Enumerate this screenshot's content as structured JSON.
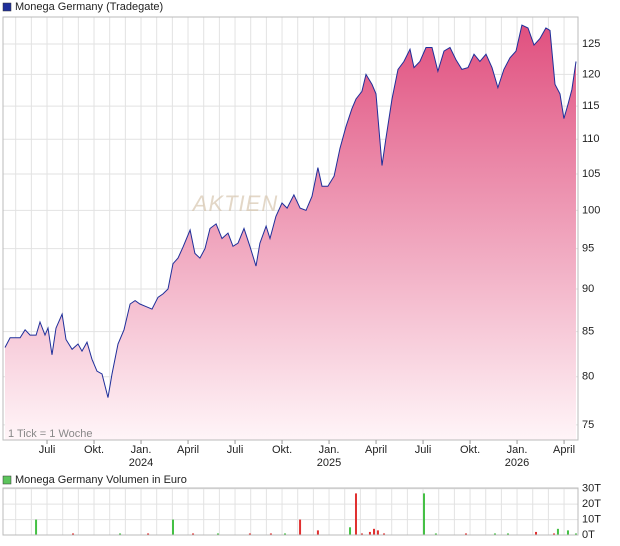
{
  "chart_data": [
    {
      "type": "area",
      "series": [
        {
          "name": "Monega Germany (Tradegate)",
          "color": "#1f2f9a",
          "fill_top": "#e0507f",
          "fill_bottom": "#fff5f8",
          "values": [
            83.2,
            84.3,
            84.3,
            85.2,
            84.6,
            84.6,
            86.1,
            84.6,
            85.4,
            82.4,
            85.4,
            87.0,
            84.1,
            83.0,
            83.6,
            82.8,
            83.8,
            81.9,
            80.6,
            80.3,
            77.8,
            80.3,
            83.6,
            85.2,
            88.2,
            88.6,
            88.2,
            87.9,
            87.6,
            89.0,
            89.4,
            90.0,
            93.1,
            93.8,
            95.2,
            97.4,
            94.4,
            93.8,
            95.0,
            97.6,
            98.2,
            96.3,
            97.0,
            95.3,
            95.7,
            97.6,
            95.3,
            92.8,
            95.7,
            97.9,
            96.3,
            99.2,
            101.0,
            100.3,
            102.1,
            100.3,
            100.0,
            101.9,
            105.9,
            103.3,
            103.3,
            104.7,
            108.7,
            111.9,
            114.6,
            116.1,
            117.3,
            120.0,
            118.4,
            116.9,
            106.2,
            110.1,
            116.1,
            120.8,
            122.1,
            124.1,
            121.1,
            122.1,
            124.4,
            124.4,
            120.5,
            123.8,
            124.4,
            122.4,
            120.8,
            121.1,
            123.3,
            122.1,
            123.3,
            121.1,
            117.9,
            120.8,
            122.7,
            123.8,
            128.2,
            127.7,
            124.8,
            125.9,
            127.7,
            127.3,
            118.4,
            116.9,
            113.1,
            115.3,
            117.6,
            122.1
          ]
        }
      ],
      "x": [
        3.32,
        3.64,
        4.28,
        4.6,
        4.92,
        5.3,
        5.55,
        5.87,
        6.06,
        6.32,
        6.57,
        6.96,
        7.21,
        7.6,
        7.98,
        8.23,
        8.55,
        8.87,
        9.19,
        9.51,
        9.89,
        10.15,
        10.53,
        10.91,
        11.3,
        11.62,
        11.93,
        12.32,
        12.7,
        13.08,
        13.4,
        13.72,
        14.04,
        14.36,
        14.68,
        15.13,
        15.44,
        15.76,
        16.08,
        16.4,
        16.79,
        17.17,
        17.55,
        17.87,
        18.19,
        18.57,
        18.95,
        19.34,
        19.59,
        19.98,
        20.23,
        20.61,
        21.0,
        21.32,
        21.76,
        22.15,
        22.53,
        22.91,
        23.29,
        23.55,
        23.93,
        24.32,
        24.7,
        25.08,
        25.46,
        25.72,
        26.1,
        26.36,
        26.74,
        27.0,
        27.38,
        27.63,
        28.02,
        28.4,
        28.78,
        29.17,
        29.42,
        29.8,
        30.19,
        30.57,
        30.95,
        31.34,
        31.72,
        32.1,
        32.48,
        32.87,
        33.25,
        33.63,
        34.02,
        34.4,
        34.78,
        35.16,
        35.55,
        35.93,
        36.31,
        36.7,
        37.08,
        37.46,
        37.84,
        38.1,
        38.42,
        38.74,
        38.99,
        39.25,
        39.5,
        39.76
      ],
      "xlim": [
        3.19,
        39.89
      ],
      "xticks": [
        {
          "value": 6,
          "label": "Juli"
        },
        {
          "value": 9,
          "label": "Okt."
        },
        {
          "value": 12,
          "label": "Jan.",
          "year": "2024"
        },
        {
          "value": 15,
          "label": "April"
        },
        {
          "value": 18,
          "label": "Juli"
        },
        {
          "value": 21,
          "label": "Okt."
        },
        {
          "value": 24,
          "label": "Jan.",
          "year": "2025"
        },
        {
          "value": 27,
          "label": "April"
        },
        {
          "value": 30,
          "label": "Juli"
        },
        {
          "value": 33,
          "label": "Okt."
        },
        {
          "value": 36,
          "label": "Jan.",
          "year": "2026"
        },
        {
          "value": 39,
          "label": "April"
        }
      ],
      "xgrid": [
        4,
        5,
        6,
        7,
        8,
        9,
        10,
        11,
        12,
        13,
        14,
        15,
        16,
        17,
        18,
        19,
        20,
        21,
        22,
        23,
        24,
        25,
        26,
        27,
        28,
        29,
        30,
        31,
        32,
        33,
        34,
        35,
        36,
        37,
        38,
        39
      ],
      "ylim": [
        73.5,
        129.6
      ],
      "yticks": [
        75,
        80,
        85,
        90,
        95,
        100,
        105,
        110,
        115,
        120,
        125
      ],
      "log": true,
      "grid": true,
      "note": "1 Tick = 1 Woche",
      "watermark": "AKTIEN"
    },
    {
      "type": "bar",
      "series": [
        {
          "name": "Monega Germany Volumen in Euro",
          "color": "#5cc55c",
          "values": [
            10,
            1,
            1,
            1,
            10,
            1,
            1,
            1,
            1,
            1,
            10,
            3,
            5,
            27,
            1,
            2,
            4,
            3,
            1,
            27,
            1,
            1,
            1,
            1,
            2,
            1,
            4,
            3,
            1
          ]
        }
      ],
      "colors": [
        "#44c044",
        "#e03030",
        "#44c044",
        "#e03030",
        "#44c044",
        "#e03030",
        "#44c044",
        "#e03030",
        "#e03030",
        "#44c044",
        "#e03030",
        "#e03030",
        "#44c044",
        "#e03030",
        "#e03030",
        "#e03030",
        "#e03030",
        "#e03030",
        "#e03030",
        "#44c044",
        "#44c044",
        "#e03030",
        "#44c044",
        "#44c044",
        "#e03030",
        "#e03030",
        "#44c044",
        "#44c044",
        "#44c044"
      ],
      "x": [
        5.3,
        7.66,
        10.66,
        12.45,
        14.04,
        15.32,
        16.91,
        18.95,
        20.29,
        21.19,
        22.15,
        23.29,
        25.34,
        25.72,
        26.1,
        26.61,
        26.87,
        27.12,
        27.51,
        30.06,
        30.82,
        32.74,
        34.59,
        35.42,
        37.21,
        38.36,
        38.61,
        39.25,
        39.76
      ],
      "xlim": [
        3.19,
        39.89
      ],
      "xgrid": [
        4,
        5,
        6,
        7,
        8,
        9,
        10,
        11,
        12,
        13,
        14,
        15,
        16,
        17,
        18,
        19,
        20,
        21,
        22,
        23,
        24,
        25,
        26,
        27,
        28,
        29,
        30,
        31,
        32,
        33,
        34,
        35,
        36,
        37,
        38,
        39
      ],
      "ylim": [
        0,
        30.5
      ],
      "yticks": [
        {
          "value": 0,
          "label": "0T"
        },
        {
          "value": 10,
          "label": "10T"
        },
        {
          "value": 20,
          "label": "20T"
        },
        {
          "value": 30,
          "label": "30T"
        }
      ],
      "grid": true
    }
  ]
}
